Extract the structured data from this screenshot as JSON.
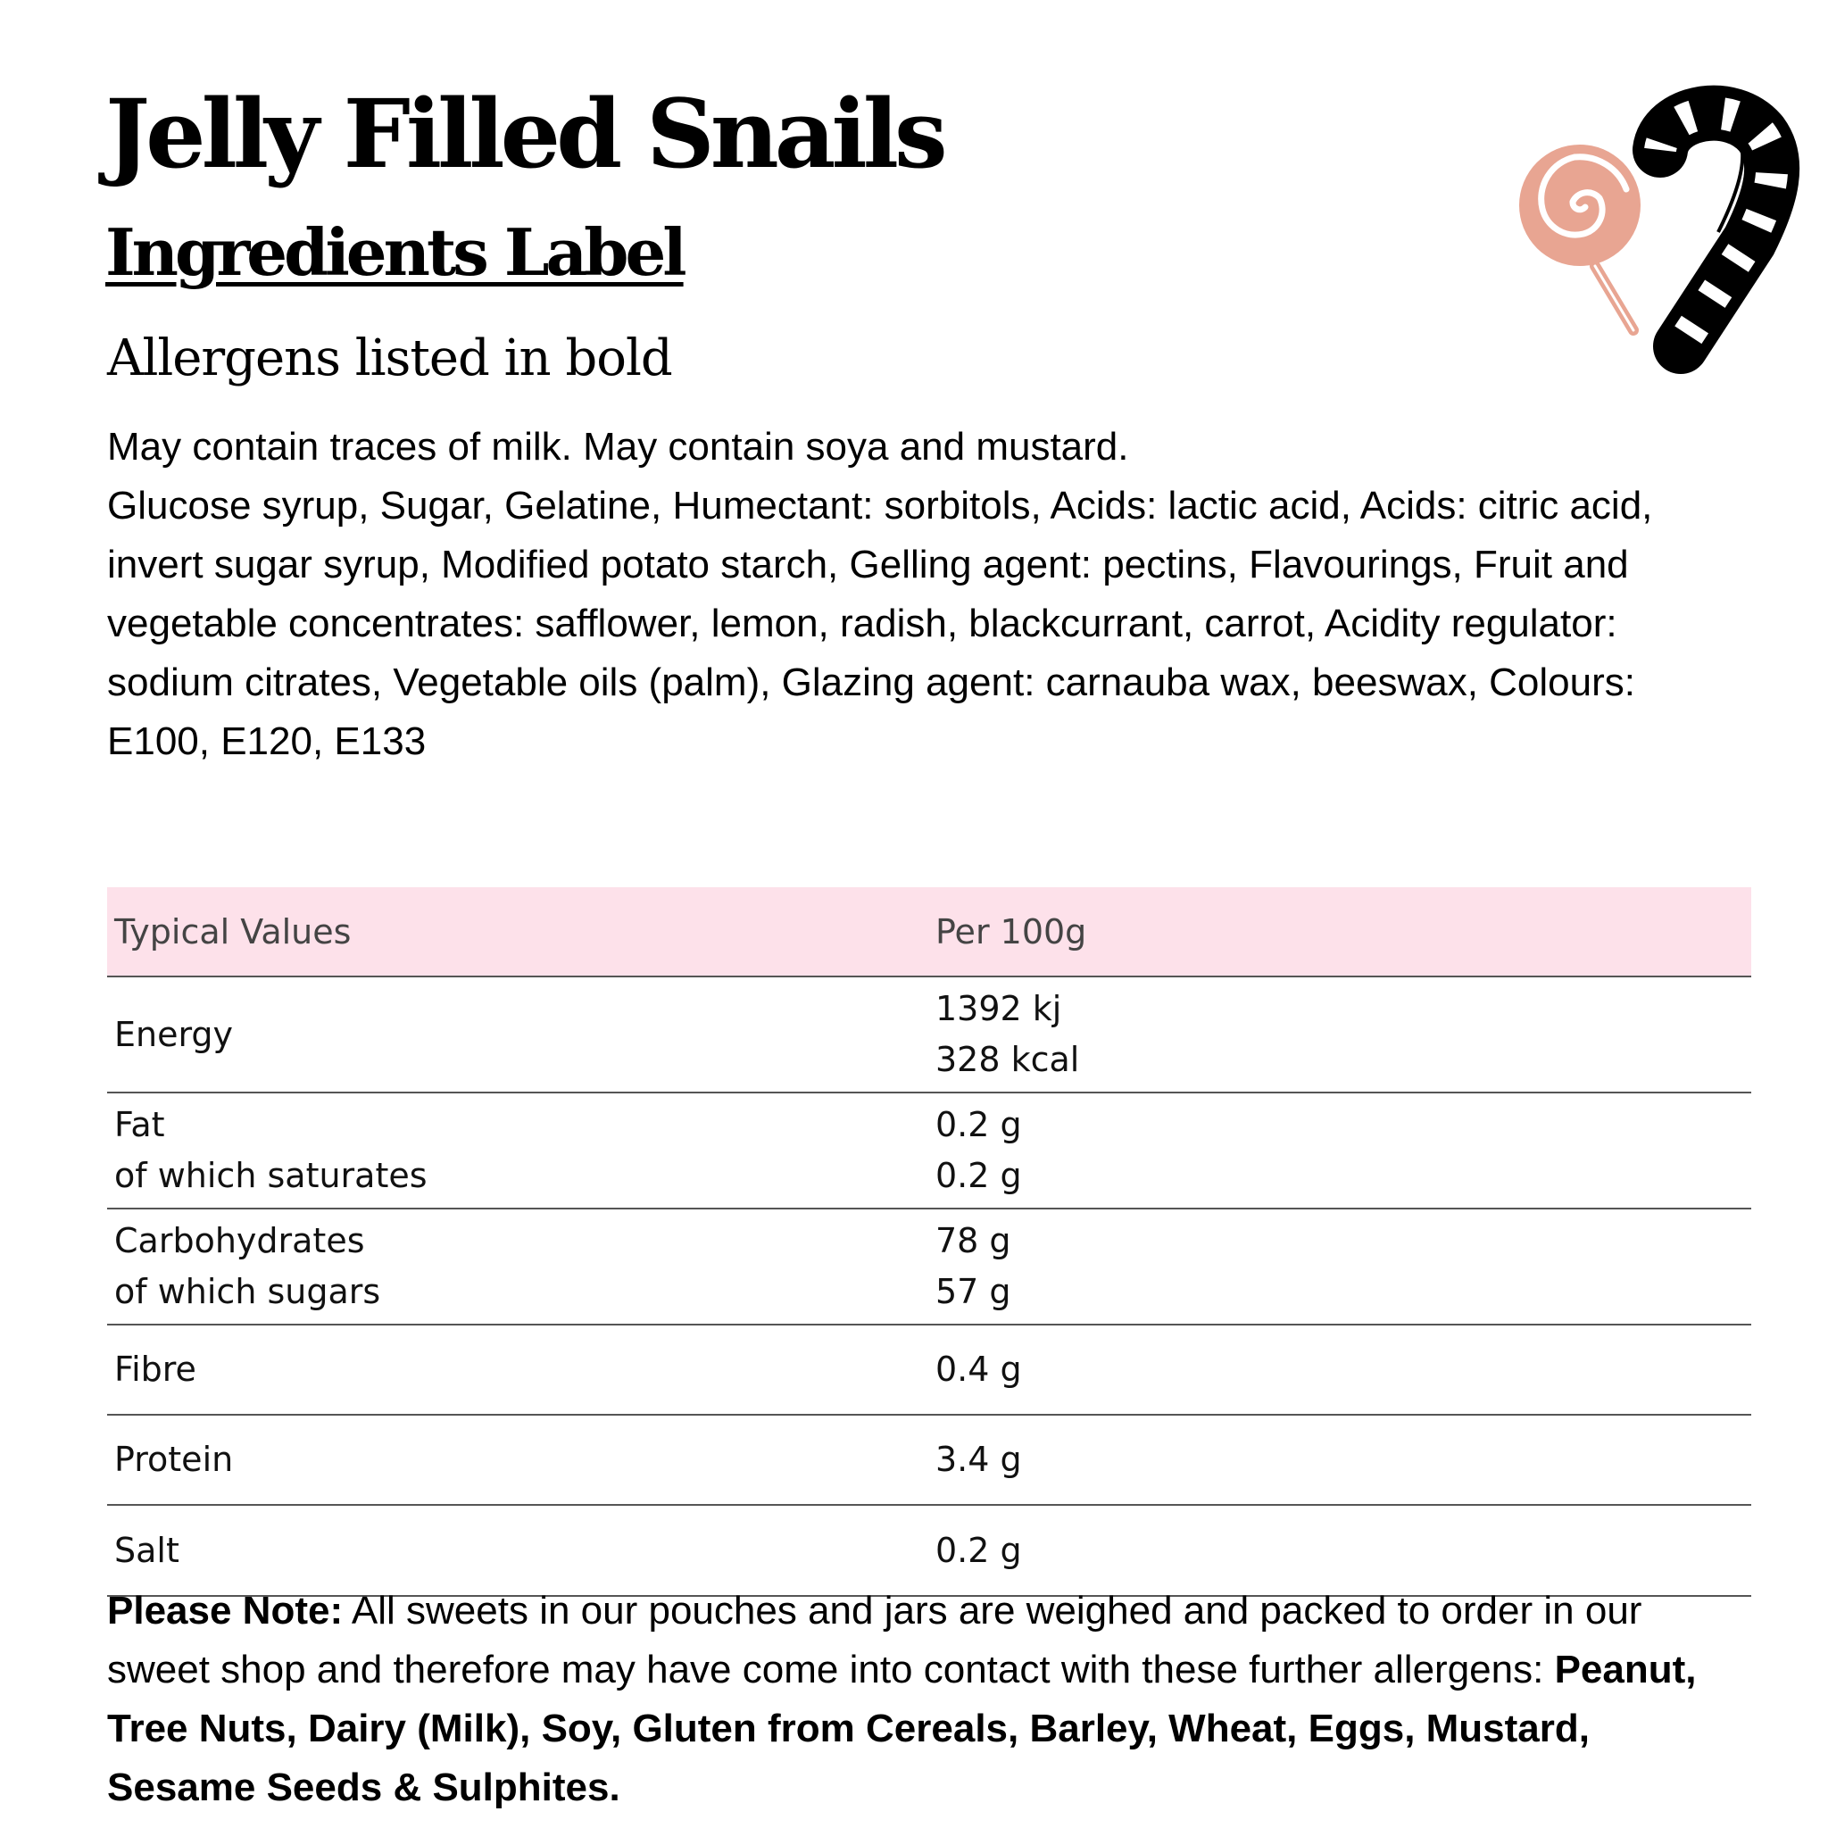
{
  "title": "Jelly Filled Snails",
  "subtitle": "Ingredients Label",
  "allergen_note": "Allergens listed in bold",
  "may_contain": "May contain traces of milk. May contain soya and mustard.",
  "ingredients": "Glucose syrup, Sugar, Gelatine, Humectant: sorbitols, Acids: lactic acid, Acids: citric acid, invert sugar syrup, Modified potato starch, Gelling agent: pectins, Flavourings, Fruit and vegetable concentrates: safflower, lemon, radish, blackcurrant, carrot, Acidity regulator: sodium citrates, Vegetable oils (palm), Glazing agent: carnauba wax, beeswax, Colours: E100, E120, E133",
  "icons": {
    "lollipop": "lollipop-icon",
    "candy_cane": "candy-cane-icon",
    "lollipop_color": "#e8a592"
  },
  "table": {
    "header_bg": "#fde1ea",
    "headers": [
      "Typical Values",
      "Per 100g"
    ],
    "rows": [
      {
        "labels": [
          "Energy"
        ],
        "values": [
          "1392 kj",
          "328 kcal"
        ]
      },
      {
        "labels": [
          "Fat",
          "of which saturates"
        ],
        "values": [
          "0.2 g",
          "0.2 g"
        ]
      },
      {
        "labels": [
          "Carbohydrates",
          "of which sugars"
        ],
        "values": [
          "78 g",
          "57 g"
        ]
      },
      {
        "labels": [
          "Fibre"
        ],
        "values": [
          "0.4 g"
        ]
      },
      {
        "labels": [
          "Protein"
        ],
        "values": [
          "3.4 g"
        ]
      },
      {
        "labels": [
          "Salt"
        ],
        "values": [
          "0.2 g"
        ]
      }
    ]
  },
  "note": {
    "lead": "Please Note:",
    "text": " All sweets in our pouches and jars are weighed and packed to order in our sweet shop and therefore may have come into contact with these further allergens: ",
    "allergens": "Peanut, Tree Nuts, Dairy (Milk), Soy, Gluten from Cereals, Barley, Wheat, Eggs, Mustard, Sesame Seeds & Sulphites."
  }
}
